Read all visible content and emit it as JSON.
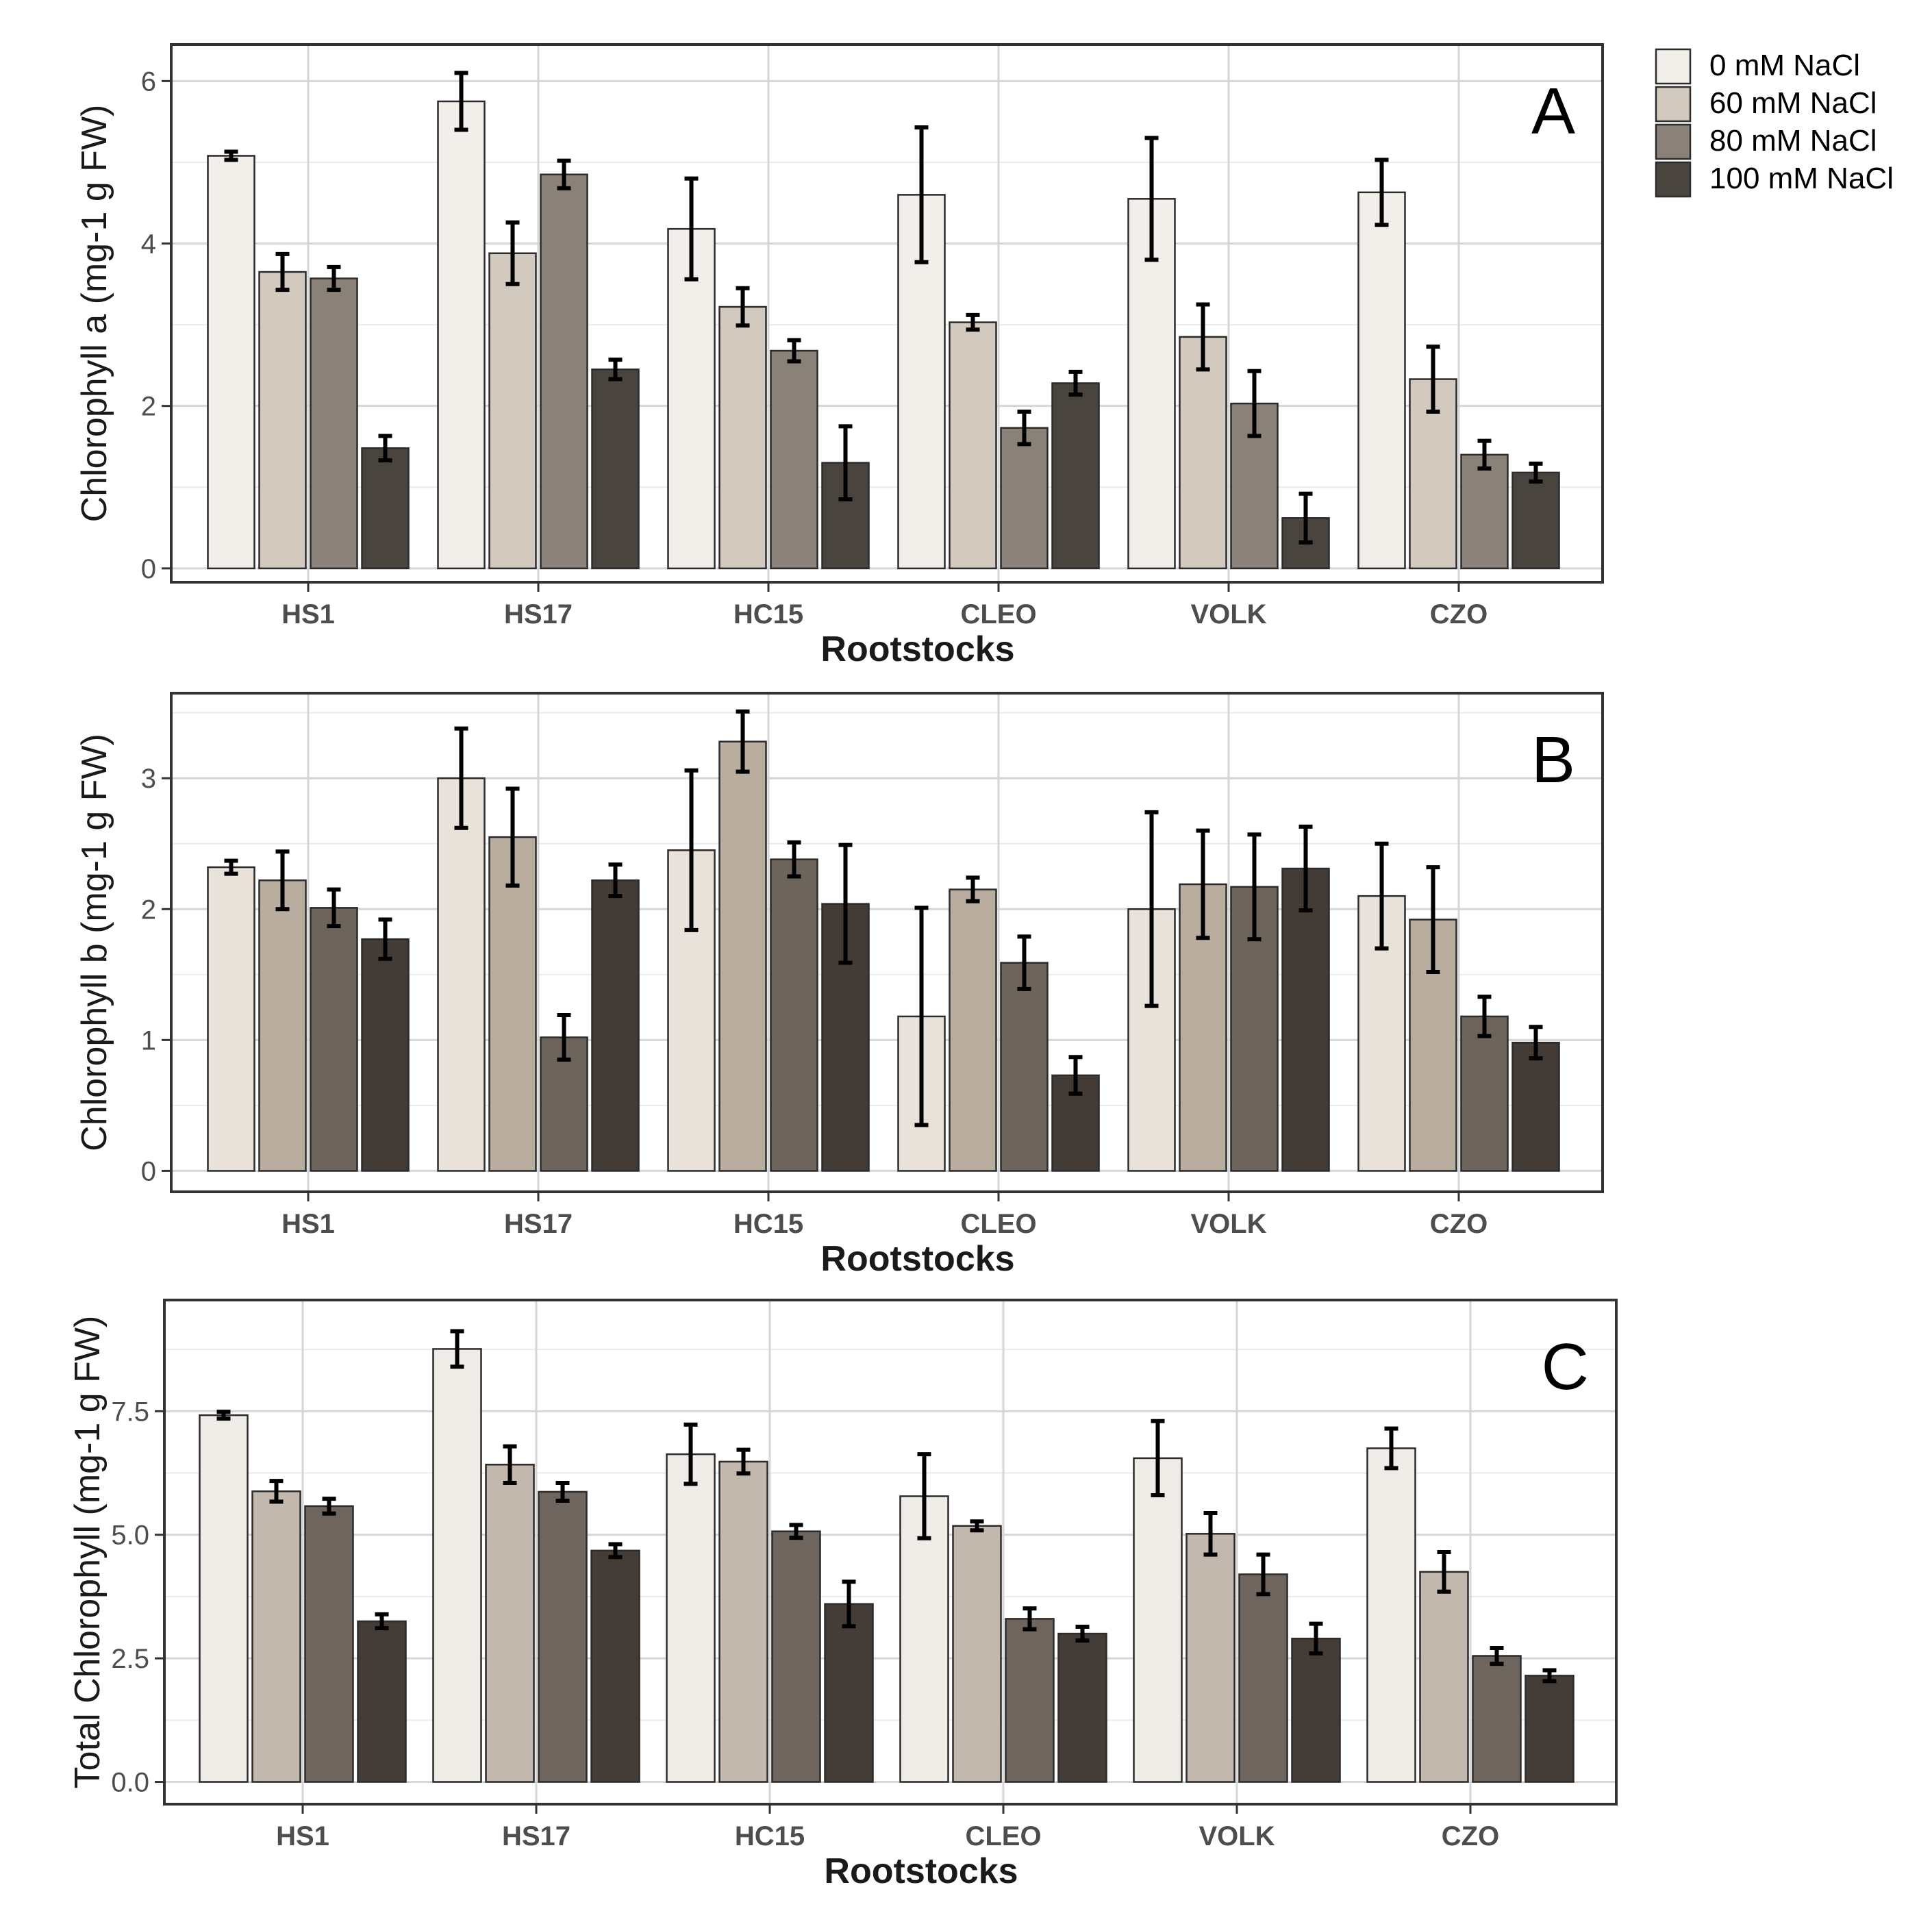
{
  "legend": {
    "title": "",
    "entries": [
      "0 mM NaCl",
      "60 mM NaCl",
      "80 mM NaCl",
      "100 mM NaCl"
    ],
    "colors": [
      "#f2efea",
      "#d2c9bf",
      "#8a8178",
      "#4a443f"
    ]
  },
  "chart_data": [
    {
      "type": "bar",
      "panel_label": "A",
      "title": "",
      "xlabel": "Rootstocks",
      "ylabel": "Chlorophyll a (mg-1 g FW)",
      "categories": [
        "HS1",
        "HS17",
        "HC15",
        "CLEO",
        "VOLK",
        "CZO"
      ],
      "ylim": [
        -0.17,
        6.45
      ],
      "yticks": [
        0,
        2,
        4,
        6
      ],
      "ytick_labels": [
        "0",
        "2",
        "4",
        "6"
      ],
      "grid": true,
      "colors": [
        "#f2efea",
        "#d2c9bf",
        "#8a8178",
        "#4a443f"
      ],
      "series": [
        {
          "name": "0 mM NaCl",
          "values": [
            5.08,
            5.75,
            4.18,
            4.6,
            4.55,
            4.63
          ],
          "errors": [
            0.05,
            0.35,
            0.62,
            0.83,
            0.75,
            0.4
          ]
        },
        {
          "name": "60 mM NaCl",
          "values": [
            3.65,
            3.88,
            3.22,
            3.03,
            2.85,
            2.33
          ],
          "errors": [
            0.22,
            0.38,
            0.23,
            0.09,
            0.4,
            0.4
          ]
        },
        {
          "name": "80 mM NaCl",
          "values": [
            3.57,
            4.85,
            2.68,
            1.73,
            2.03,
            1.4
          ],
          "errors": [
            0.14,
            0.17,
            0.13,
            0.2,
            0.4,
            0.17
          ]
        },
        {
          "name": "100 mM NaCl",
          "values": [
            1.48,
            2.45,
            1.3,
            2.28,
            0.62,
            1.18
          ],
          "errors": [
            0.15,
            0.12,
            0.45,
            0.14,
            0.3,
            0.11
          ]
        }
      ]
    },
    {
      "type": "bar",
      "panel_label": "B",
      "title": "",
      "xlabel": "Rootstocks",
      "ylabel": "Chlorophyll b (mg-1 g FW)",
      "categories": [
        "HS1",
        "HS17",
        "HC15",
        "CLEO",
        "VOLK",
        "CZO"
      ],
      "ylim": [
        -0.16,
        3.65
      ],
      "yticks": [
        0,
        1,
        2,
        3
      ],
      "ytick_labels": [
        "0",
        "1",
        "2",
        "3"
      ],
      "grid": true,
      "colors": [
        "#e8e2da",
        "#b9ada0",
        "#6d645c",
        "#433c36"
      ],
      "series": [
        {
          "name": "0 mM NaCl",
          "values": [
            2.32,
            3.0,
            2.45,
            1.18,
            2.0,
            2.1
          ],
          "errors": [
            0.05,
            0.38,
            0.61,
            0.83,
            0.74,
            0.4
          ]
        },
        {
          "name": "60 mM NaCl",
          "values": [
            2.22,
            2.55,
            3.28,
            2.15,
            2.19,
            1.92
          ],
          "errors": [
            0.22,
            0.37,
            0.23,
            0.09,
            0.41,
            0.4
          ]
        },
        {
          "name": "80 mM NaCl",
          "values": [
            2.01,
            1.02,
            2.38,
            1.59,
            2.17,
            1.18
          ],
          "errors": [
            0.14,
            0.17,
            0.13,
            0.2,
            0.4,
            0.15
          ]
        },
        {
          "name": "100 mM NaCl",
          "values": [
            1.77,
            2.22,
            2.04,
            0.73,
            2.31,
            0.98
          ],
          "errors": [
            0.15,
            0.12,
            0.45,
            0.14,
            0.32,
            0.12
          ]
        }
      ]
    },
    {
      "type": "bar",
      "panel_label": "C",
      "title": "",
      "xlabel": "Rootstocks",
      "ylabel": "Total Chlorophyll (mg-1 g FW)",
      "categories": [
        "HS1",
        "HS17",
        "HC15",
        "CLEO",
        "VOLK",
        "CZO"
      ],
      "ylim": [
        -0.45,
        9.75
      ],
      "yticks": [
        0,
        2.5,
        5,
        7.5
      ],
      "ytick_labels": [
        "0.0",
        "2.5",
        "5.0",
        "7.5"
      ],
      "grid": true,
      "colors": [
        "#efebe6",
        "#c2b8ad",
        "#6e665e",
        "#443d37"
      ],
      "series": [
        {
          "name": "0 mM NaCl",
          "values": [
            7.42,
            8.76,
            6.63,
            5.78,
            6.55,
            6.75
          ],
          "errors": [
            0.07,
            0.36,
            0.6,
            0.85,
            0.75,
            0.4
          ]
        },
        {
          "name": "60 mM NaCl",
          "values": [
            5.88,
            6.42,
            6.48,
            5.18,
            5.02,
            4.25
          ],
          "errors": [
            0.21,
            0.37,
            0.24,
            0.09,
            0.42,
            0.4
          ]
        },
        {
          "name": "80 mM NaCl",
          "values": [
            5.58,
            5.87,
            5.07,
            3.3,
            4.2,
            2.55
          ],
          "errors": [
            0.15,
            0.18,
            0.13,
            0.21,
            0.4,
            0.16
          ]
        },
        {
          "name": "100 mM NaCl",
          "values": [
            3.25,
            4.68,
            3.6,
            3.0,
            2.9,
            2.15
          ],
          "errors": [
            0.14,
            0.13,
            0.45,
            0.14,
            0.3,
            0.11
          ]
        }
      ]
    }
  ]
}
